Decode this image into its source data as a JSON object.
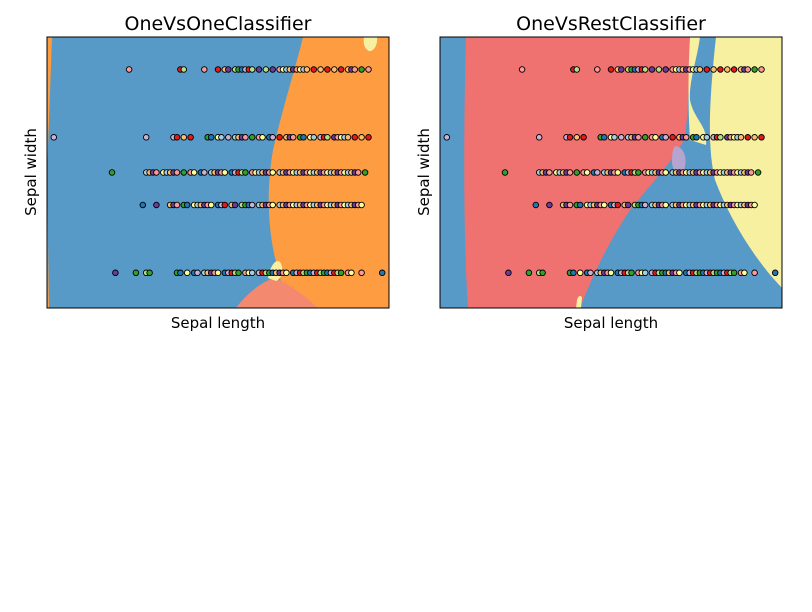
{
  "chart_data": [
    {
      "type": "scatter",
      "title": "OneVsOneClassifier",
      "xlabel": "Sepal length",
      "ylabel": "Sepal width",
      "xlim": [
        0,
        1
      ],
      "ylim": [
        0,
        1
      ],
      "xticks": "none",
      "yticks": "none",
      "grid": false,
      "legend": "none",
      "background_regions": [
        {
          "color": "#5799c7",
          "side": "left"
        },
        {
          "color": "#fd9c41",
          "side": "right"
        },
        {
          "color": "#f38a70",
          "side": "bottom-right"
        },
        {
          "color": "#f7f0a0",
          "side": "top-right"
        }
      ],
      "rows": [
        {
          "y": 0.88,
          "x": [
            0.24,
            0.39,
            0.4,
            0.46,
            0.5,
            0.52,
            0.53,
            0.55,
            0.56,
            0.57,
            0.58,
            0.59,
            0.6,
            0.62,
            0.64,
            0.66,
            0.68,
            0.69,
            0.7,
            0.71,
            0.72,
            0.73,
            0.74,
            0.75,
            0.76,
            0.78,
            0.8,
            0.82,
            0.84,
            0.86,
            0.88,
            0.89,
            0.9,
            0.92,
            0.94
          ]
        },
        {
          "y": 0.63,
          "x": [
            0.02,
            0.29,
            0.37,
            0.38,
            0.4,
            0.42,
            0.47,
            0.48,
            0.5,
            0.51,
            0.53,
            0.55,
            0.56,
            0.57,
            0.58,
            0.6,
            0.62,
            0.63,
            0.65,
            0.66,
            0.68,
            0.7,
            0.71,
            0.72,
            0.74,
            0.75,
            0.77,
            0.78,
            0.8,
            0.81,
            0.82,
            0.84,
            0.85,
            0.86,
            0.87,
            0.88,
            0.9,
            0.92,
            0.94
          ]
        },
        {
          "y": 0.5,
          "x": [
            0.19,
            0.29,
            0.3,
            0.31,
            0.32,
            0.34,
            0.35,
            0.36,
            0.37,
            0.38,
            0.4,
            0.42,
            0.43,
            0.45,
            0.46,
            0.48,
            0.49,
            0.5,
            0.51,
            0.52,
            0.54,
            0.55,
            0.56,
            0.57,
            0.58,
            0.6,
            0.61,
            0.62,
            0.63,
            0.64,
            0.65,
            0.66,
            0.68,
            0.69,
            0.7,
            0.71,
            0.72,
            0.73,
            0.74,
            0.75,
            0.76,
            0.77,
            0.78,
            0.79,
            0.8,
            0.81,
            0.82,
            0.83,
            0.84,
            0.85,
            0.86,
            0.87,
            0.88,
            0.89,
            0.9,
            0.91,
            0.93
          ]
        },
        {
          "y": 0.38,
          "x": [
            0.28,
            0.32,
            0.36,
            0.37,
            0.38,
            0.4,
            0.41,
            0.43,
            0.44,
            0.45,
            0.46,
            0.47,
            0.48,
            0.5,
            0.51,
            0.52,
            0.54,
            0.55,
            0.57,
            0.58,
            0.59,
            0.6,
            0.62,
            0.63,
            0.64,
            0.65,
            0.66,
            0.68,
            0.69,
            0.7,
            0.71,
            0.72,
            0.73,
            0.74,
            0.75,
            0.76,
            0.77,
            0.78,
            0.79,
            0.8,
            0.81,
            0.82,
            0.83,
            0.84,
            0.85,
            0.86,
            0.87,
            0.88,
            0.89,
            0.9,
            0.91,
            0.92
          ]
        },
        {
          "y": 0.13,
          "x": [
            0.2,
            0.26,
            0.29,
            0.3,
            0.38,
            0.39,
            0.41,
            0.43,
            0.44,
            0.46,
            0.47,
            0.48,
            0.49,
            0.5,
            0.52,
            0.53,
            0.54,
            0.55,
            0.56,
            0.58,
            0.59,
            0.6,
            0.62,
            0.63,
            0.64,
            0.65,
            0.66,
            0.67,
            0.68,
            0.69,
            0.7,
            0.72,
            0.73,
            0.74,
            0.75,
            0.76,
            0.77,
            0.78,
            0.79,
            0.8,
            0.81,
            0.82,
            0.83,
            0.84,
            0.85,
            0.86,
            0.88,
            0.89,
            0.92,
            0.98
          ]
        }
      ]
    },
    {
      "type": "scatter",
      "title": "OneVsRestClassifier",
      "xlabel": "Sepal length",
      "ylabel": "Sepal width",
      "xlim": [
        0,
        1
      ],
      "ylim": [
        0,
        1
      ],
      "xticks": "none",
      "yticks": "none",
      "grid": false,
      "legend": "none",
      "background_regions": [
        {
          "color": "#5799c7",
          "side": "left strip and lower right"
        },
        {
          "color": "#ef7271",
          "side": "center"
        },
        {
          "color": "#f7f0a0",
          "side": "upper right"
        },
        {
          "color": "#b5a4cf",
          "side": "small patch"
        }
      ],
      "rows": [
        {
          "y": 0.88,
          "x": [
            0.24,
            0.39,
            0.4,
            0.46,
            0.5,
            0.52,
            0.53,
            0.55,
            0.56,
            0.57,
            0.58,
            0.59,
            0.6,
            0.62,
            0.64,
            0.66,
            0.68,
            0.69,
            0.7,
            0.71,
            0.72,
            0.73,
            0.74,
            0.75,
            0.76,
            0.78,
            0.8,
            0.82,
            0.84,
            0.86,
            0.88,
            0.89,
            0.9,
            0.92,
            0.94
          ]
        },
        {
          "y": 0.63,
          "x": [
            0.02,
            0.29,
            0.37,
            0.38,
            0.4,
            0.42,
            0.47,
            0.48,
            0.5,
            0.51,
            0.53,
            0.55,
            0.56,
            0.57,
            0.58,
            0.6,
            0.62,
            0.63,
            0.65,
            0.66,
            0.68,
            0.7,
            0.71,
            0.72,
            0.74,
            0.75,
            0.77,
            0.78,
            0.8,
            0.81,
            0.82,
            0.84,
            0.85,
            0.86,
            0.87,
            0.88,
            0.9,
            0.92,
            0.94
          ]
        },
        {
          "y": 0.5,
          "x": [
            0.19,
            0.29,
            0.3,
            0.31,
            0.32,
            0.34,
            0.35,
            0.36,
            0.37,
            0.38,
            0.4,
            0.42,
            0.43,
            0.45,
            0.46,
            0.48,
            0.49,
            0.5,
            0.51,
            0.52,
            0.54,
            0.55,
            0.56,
            0.57,
            0.58,
            0.6,
            0.61,
            0.62,
            0.63,
            0.64,
            0.65,
            0.66,
            0.68,
            0.69,
            0.7,
            0.71,
            0.72,
            0.73,
            0.74,
            0.75,
            0.76,
            0.77,
            0.78,
            0.79,
            0.8,
            0.81,
            0.82,
            0.83,
            0.84,
            0.85,
            0.86,
            0.87,
            0.88,
            0.89,
            0.9,
            0.91,
            0.93
          ]
        },
        {
          "y": 0.38,
          "x": [
            0.28,
            0.32,
            0.36,
            0.37,
            0.38,
            0.4,
            0.41,
            0.43,
            0.44,
            0.45,
            0.46,
            0.47,
            0.48,
            0.5,
            0.51,
            0.52,
            0.54,
            0.55,
            0.57,
            0.58,
            0.59,
            0.6,
            0.62,
            0.63,
            0.64,
            0.65,
            0.66,
            0.68,
            0.69,
            0.7,
            0.71,
            0.72,
            0.73,
            0.74,
            0.75,
            0.76,
            0.77,
            0.78,
            0.79,
            0.8,
            0.81,
            0.82,
            0.83,
            0.84,
            0.85,
            0.86,
            0.87,
            0.88,
            0.89,
            0.9,
            0.91,
            0.92
          ]
        },
        {
          "y": 0.13,
          "x": [
            0.2,
            0.26,
            0.29,
            0.3,
            0.38,
            0.39,
            0.41,
            0.43,
            0.44,
            0.46,
            0.47,
            0.48,
            0.49,
            0.5,
            0.52,
            0.53,
            0.54,
            0.55,
            0.56,
            0.58,
            0.59,
            0.6,
            0.62,
            0.63,
            0.64,
            0.65,
            0.66,
            0.67,
            0.68,
            0.69,
            0.7,
            0.72,
            0.73,
            0.74,
            0.75,
            0.76,
            0.77,
            0.78,
            0.79,
            0.8,
            0.81,
            0.82,
            0.83,
            0.84,
            0.85,
            0.86,
            0.88,
            0.89,
            0.92,
            0.98
          ]
        }
      ]
    }
  ],
  "point_palette": [
    "#e41a1c",
    "#a6cee3",
    "#1f78b4",
    "#fb9a99",
    "#b2df8a",
    "#fdbf6f",
    "#cab2d6",
    "#ffff99",
    "#33a02c",
    "#6a3d9a"
  ],
  "point_edge_color": "#000000"
}
